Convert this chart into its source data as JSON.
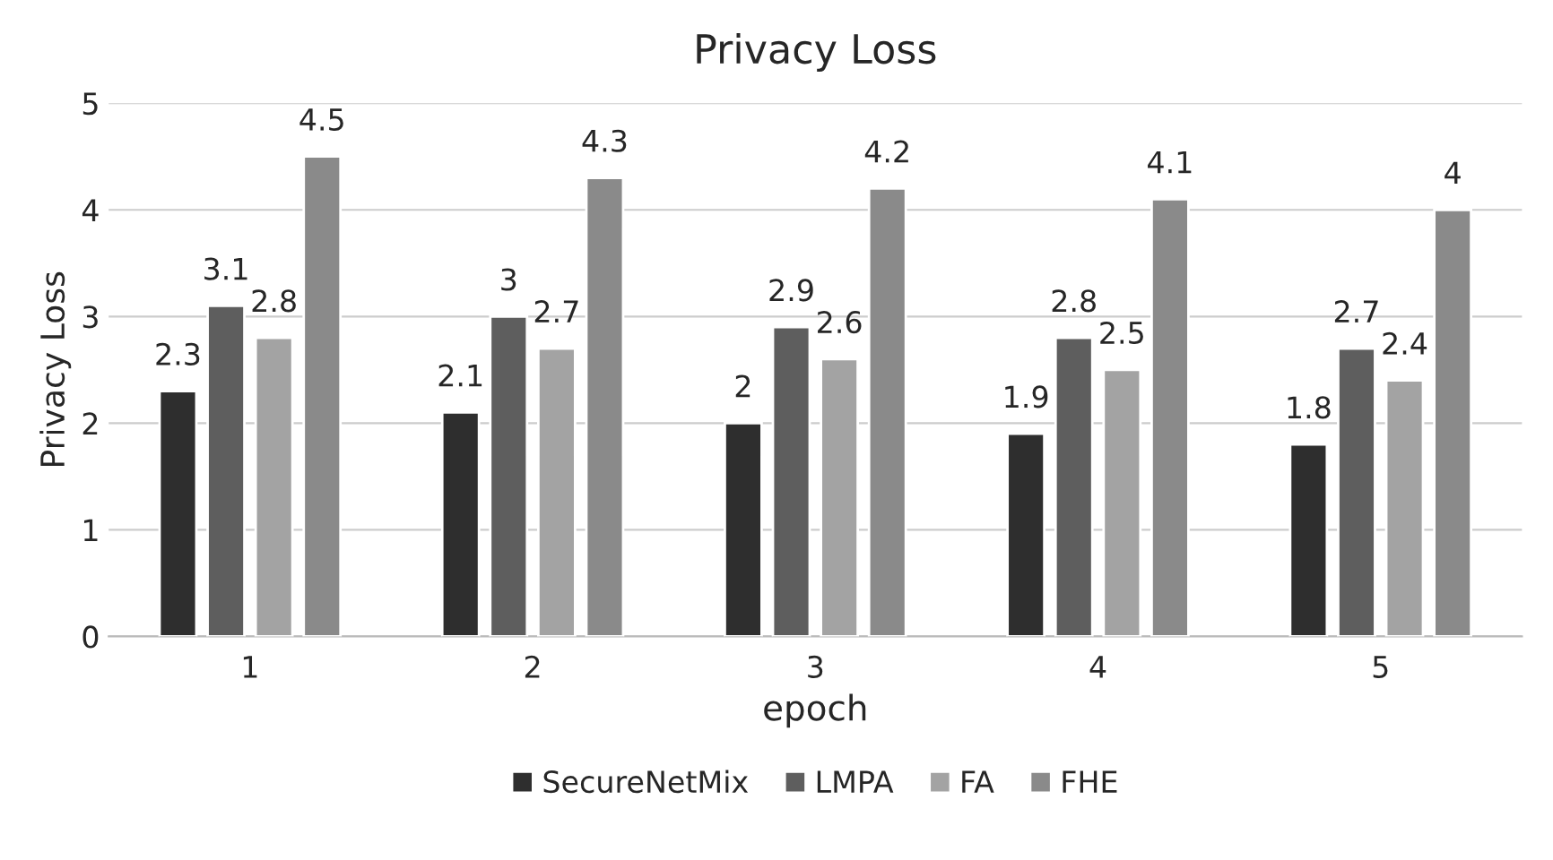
{
  "chart_data": {
    "type": "bar",
    "title": "Privacy Loss",
    "xlabel": "epoch",
    "ylabel": "Privacy Loss",
    "categories": [
      "1",
      "2",
      "3",
      "4",
      "5"
    ],
    "series": [
      {
        "name": "SecureNetMix",
        "color": "#2e2e2e",
        "values": [
          2.3,
          2.1,
          2,
          1.9,
          1.8
        ]
      },
      {
        "name": "LMPA",
        "color": "#5e5e5e",
        "values": [
          3.1,
          3,
          2.9,
          2.8,
          2.7
        ]
      },
      {
        "name": "FA",
        "color": "#a3a3a3",
        "values": [
          2.8,
          2.7,
          2.6,
          2.5,
          2.4
        ]
      },
      {
        "name": "FHE",
        "color": "#8a8a8a",
        "values": [
          4.5,
          4.3,
          4.2,
          4.1,
          4
        ]
      }
    ],
    "ylim": [
      0,
      5
    ],
    "yticks": [
      0,
      1,
      2,
      3,
      4,
      5
    ],
    "grid": "y",
    "legend": "bottom",
    "data_labels": true
  }
}
